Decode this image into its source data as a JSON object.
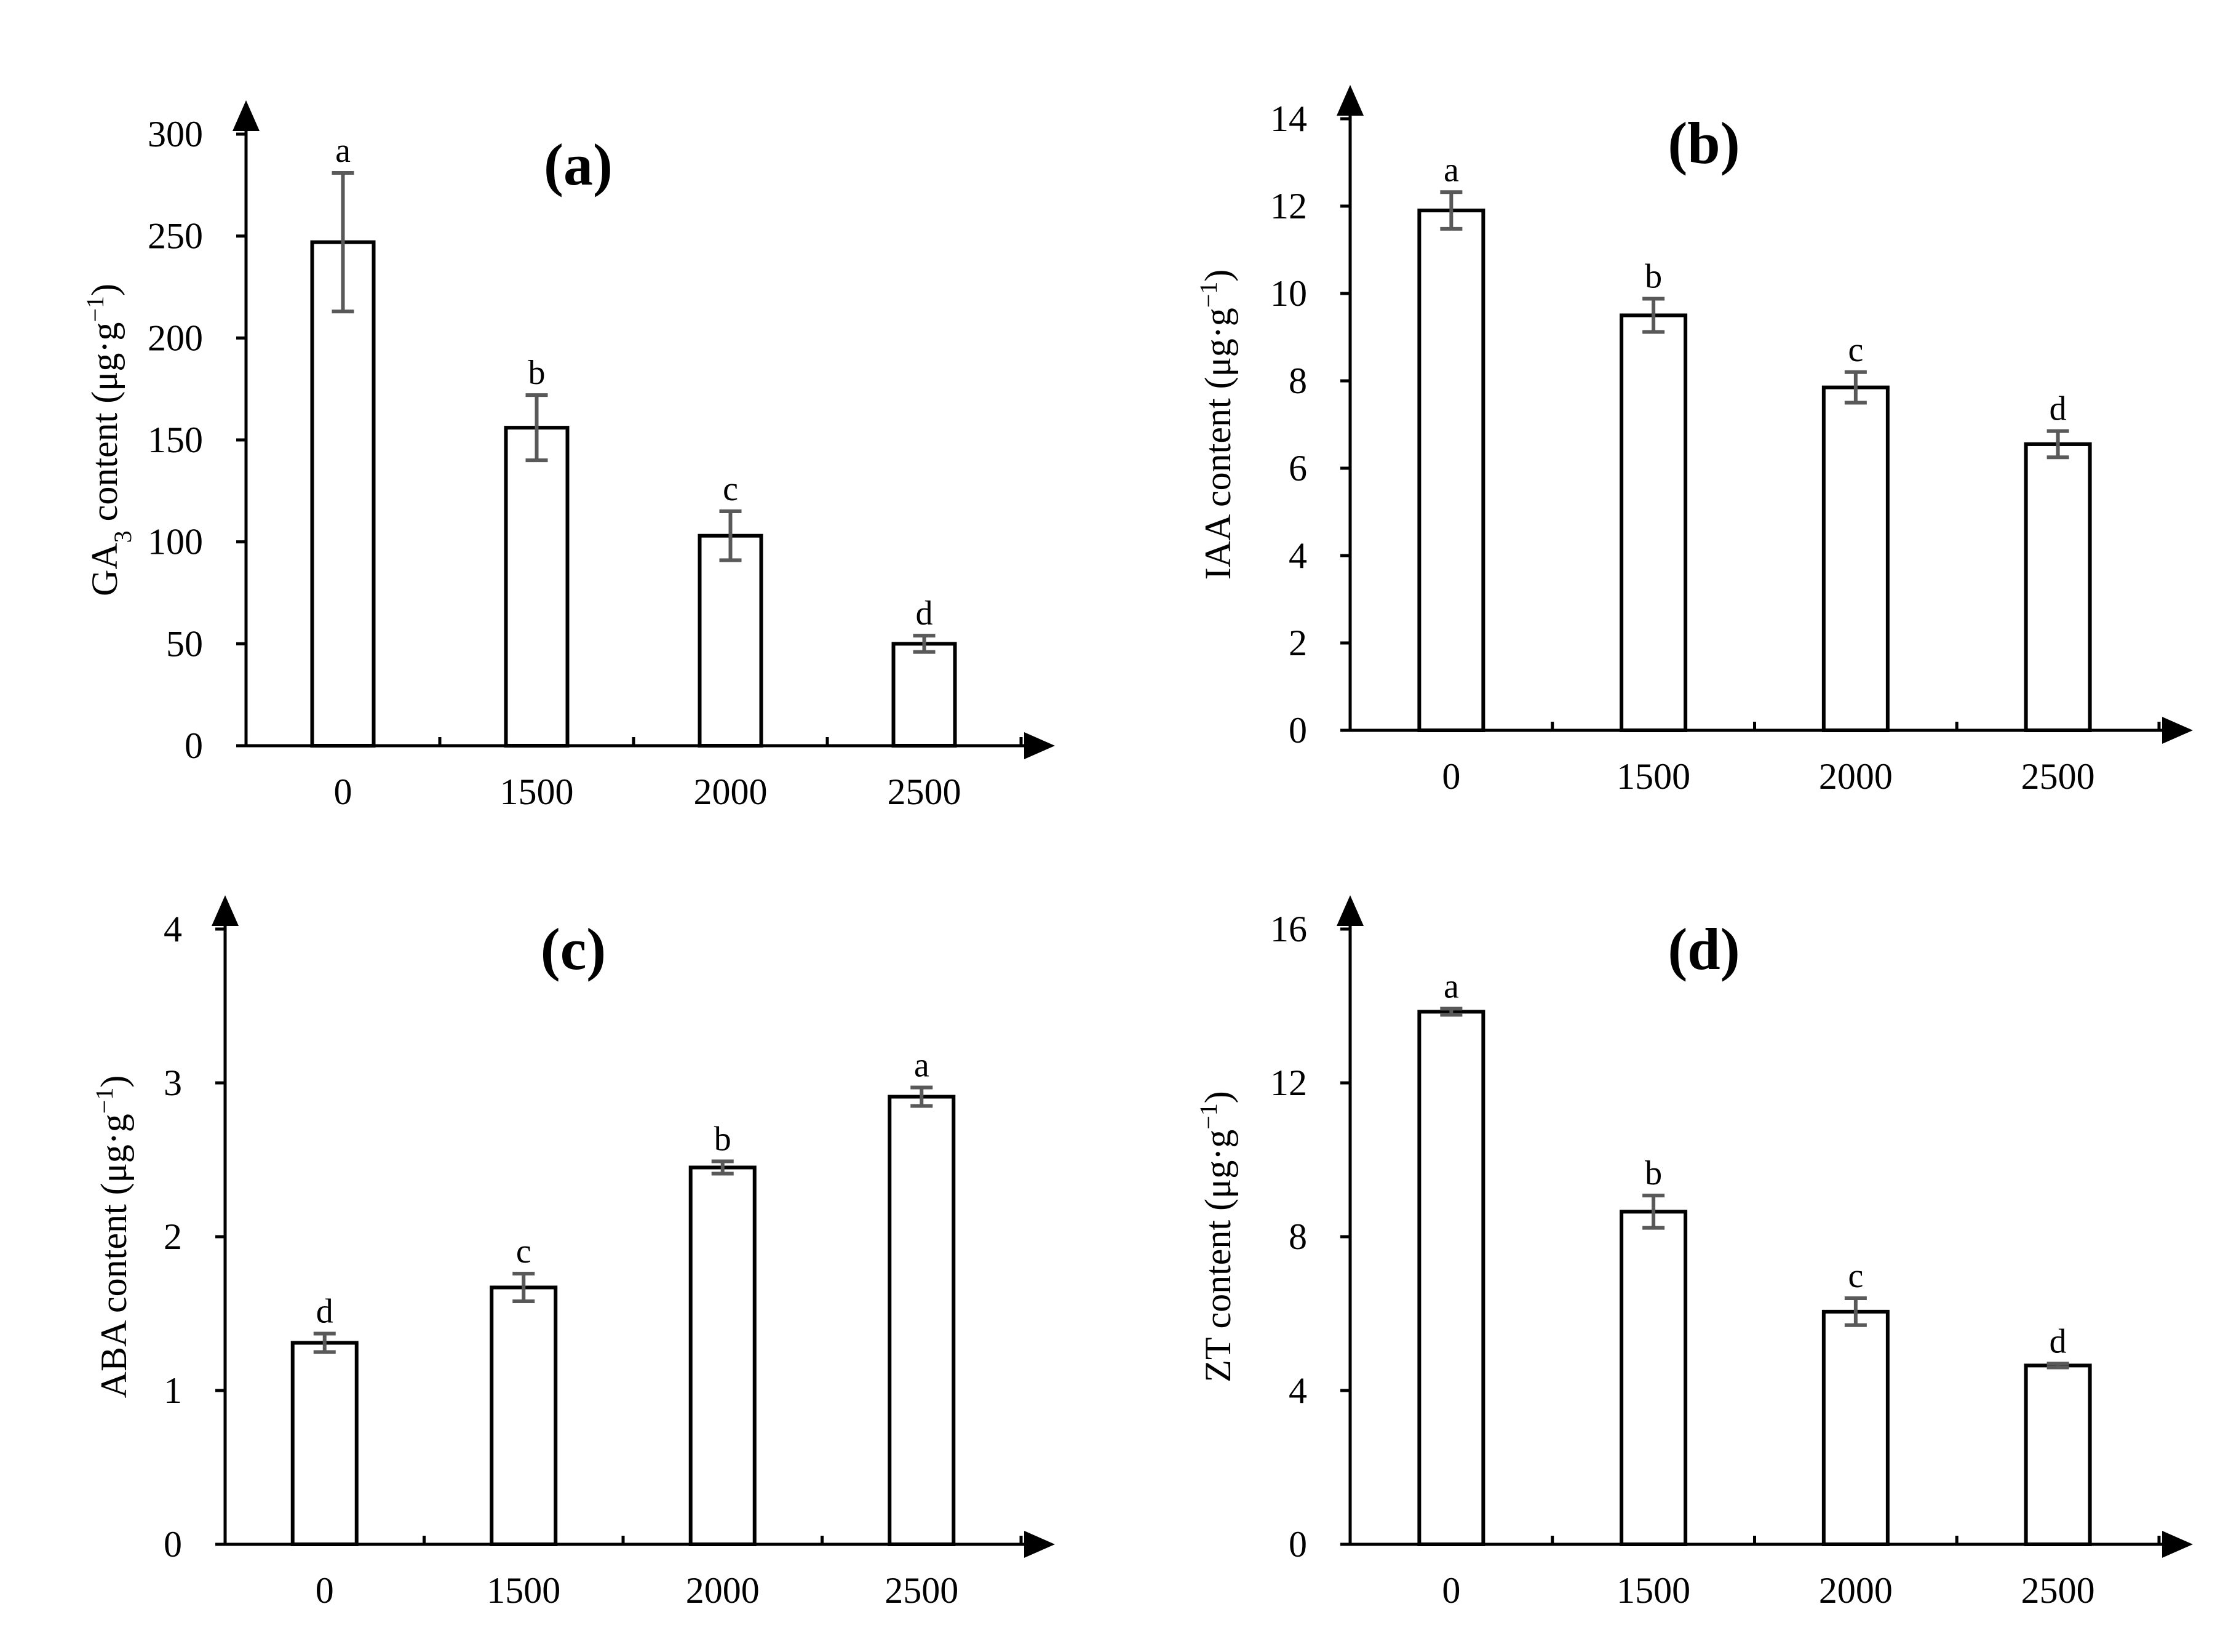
{
  "chart_data": [
    {
      "type": "bar",
      "panel": "(a)",
      "categories": [
        "0",
        "1500",
        "2000",
        "2500"
      ],
      "values": [
        247,
        156,
        103,
        50
      ],
      "errors": [
        34,
        16,
        12,
        4
      ],
      "significance": [
        "a",
        "b",
        "c",
        "d"
      ],
      "ylabel_prefix": "GA",
      "ylabel_sub": "3",
      "ylabel_main": " content (μg·g",
      "ylabel_sup": "−1",
      "ylabel_tail": ")",
      "ylim": [
        0,
        300
      ],
      "yticks": [
        0,
        50,
        100,
        150,
        200,
        250,
        300
      ]
    },
    {
      "type": "bar",
      "panel": "(b)",
      "categories": [
        "0",
        "1500",
        "2000",
        "2500"
      ],
      "values": [
        11.9,
        9.5,
        7.85,
        6.55
      ],
      "errors": [
        0.42,
        0.38,
        0.35,
        0.3
      ],
      "significance": [
        "a",
        "b",
        "c",
        "d"
      ],
      "ylabel_prefix": "",
      "ylabel_sub": "",
      "ylabel_main": "IAA content (μg·g",
      "ylabel_sup": "−1",
      "ylabel_tail": ")",
      "ylim": [
        0,
        14
      ],
      "yticks": [
        0,
        2,
        4,
        6,
        8,
        10,
        12,
        14
      ]
    },
    {
      "type": "bar",
      "panel": "(c)",
      "categories": [
        "0",
        "1500",
        "2000",
        "2500"
      ],
      "values": [
        1.31,
        1.67,
        2.45,
        2.91
      ],
      "errors": [
        0.06,
        0.09,
        0.04,
        0.06
      ],
      "significance": [
        "d",
        "c",
        "b",
        "a"
      ],
      "ylabel_prefix": "",
      "ylabel_sub": "",
      "ylabel_main": "ABA content (μg·g",
      "ylabel_sup": "−1",
      "ylabel_tail": ")",
      "ylim": [
        0,
        4
      ],
      "yticks": [
        0,
        1,
        2,
        3,
        4
      ]
    },
    {
      "type": "bar",
      "panel": "(d)",
      "categories": [
        "0",
        "1500",
        "2000",
        "2500"
      ],
      "values": [
        13.85,
        8.65,
        6.05,
        4.65
      ],
      "errors": [
        0.08,
        0.42,
        0.35,
        0.05
      ],
      "significance": [
        "a",
        "b",
        "c",
        "d"
      ],
      "ylabel_prefix": "",
      "ylabel_sub": "",
      "ylabel_main": "ZT content (μg·g",
      "ylabel_sup": "−1",
      "ylabel_tail": ")",
      "ylim": [
        0,
        16
      ],
      "yticks": [
        0,
        4,
        8,
        12,
        16
      ]
    }
  ]
}
